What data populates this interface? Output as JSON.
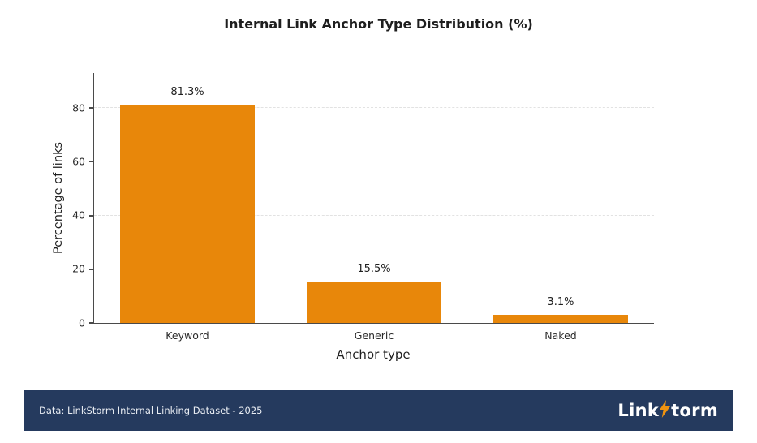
{
  "chart_data": {
    "type": "bar",
    "title": "Internal Link Anchor Type Distribution (%)",
    "categories": [
      "Keyword",
      "Generic",
      "Naked"
    ],
    "values": [
      81.3,
      15.5,
      3.1
    ],
    "value_labels": [
      "81.3%",
      "15.5%",
      "3.1%"
    ],
    "xlabel": "Anchor type",
    "ylabel": "Percentage of links",
    "ylim": [
      0,
      93
    ],
    "yticks": [
      0,
      20,
      40,
      60,
      80
    ],
    "grid": true,
    "legend": false,
    "bar_color": "#e8870a"
  },
  "footer": {
    "source_text": "Data: LinkStorm Internal Linking Dataset - 2025",
    "logo_prefix": "Link",
    "logo_suffix": "torm",
    "background": "#253a5e",
    "bolt_color": "#f0930f"
  }
}
